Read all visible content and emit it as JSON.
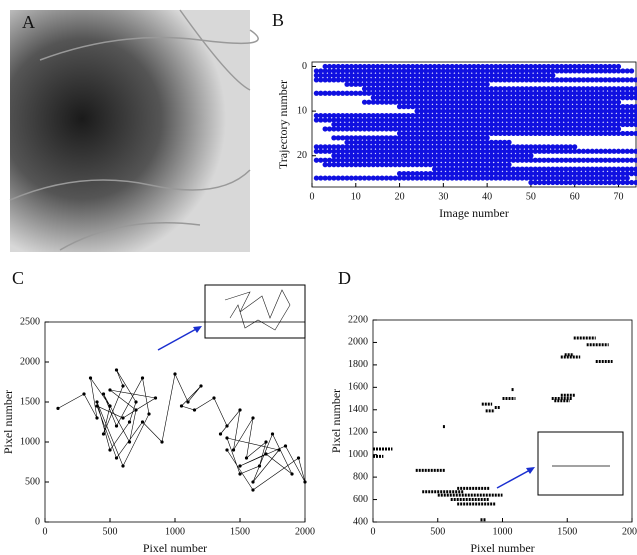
{
  "panel_labels": [
    "A",
    "B",
    "C",
    "D"
  ],
  "chart_data": [
    {
      "type": "dotrows",
      "xlabel": "Image number",
      "ylabel": "Trajectory number",
      "color": "#1010e0",
      "xlim": [
        0,
        74
      ],
      "ylim": [
        -1,
        27
      ],
      "y_inverted": true,
      "xticks": [
        0,
        10,
        20,
        30,
        40,
        50,
        60,
        70
      ],
      "yticks": [
        0,
        10,
        20
      ],
      "rows": [
        0,
        1,
        2,
        3,
        4,
        5,
        6,
        7,
        8,
        9,
        10,
        11,
        12,
        13,
        14,
        15,
        16,
        17,
        18,
        19,
        20,
        21,
        22,
        23,
        24,
        25,
        26
      ],
      "start": [
        3,
        1,
        1,
        1,
        8,
        12,
        1,
        14,
        12,
        20,
        24,
        1,
        1,
        5,
        3,
        20,
        5,
        8,
        1,
        1,
        5,
        1,
        3,
        28,
        20,
        1,
        50
      ],
      "end": [
        70,
        73,
        55,
        74,
        40,
        74,
        74,
        74,
        70,
        74,
        74,
        74,
        74,
        74,
        70,
        74,
        40,
        45,
        60,
        74,
        50,
        74,
        45,
        74,
        74,
        72,
        74
      ]
    },
    {
      "type": "line",
      "xlabel": "Pixel number",
      "ylabel": "Pixel number",
      "color": "#000000",
      "xlim": [
        0,
        2000
      ],
      "ylim": [
        0,
        2500
      ],
      "xticks": [
        0,
        500,
        1000,
        1500,
        2000
      ],
      "yticks": [
        0,
        500,
        1000,
        1500,
        2000,
        2500
      ],
      "x": [
        100,
        300,
        400,
        350,
        500,
        450,
        600,
        550,
        700,
        650,
        500,
        400,
        600,
        800,
        750,
        550,
        450,
        650,
        700,
        500,
        850,
        600,
        400,
        550,
        750,
        900,
        1000,
        1100,
        1200,
        1050,
        1150,
        1300,
        1400,
        1350,
        1500,
        1450,
        1600,
        1550,
        1700,
        1650,
        1500,
        1400,
        1800,
        1600,
        1750,
        1900,
        1700,
        1500,
        1850,
        2000,
        1950,
        1600,
        1400
      ],
      "y": [
        1420,
        1600,
        1300,
        1800,
        1450,
        1100,
        1700,
        1900,
        1500,
        1250,
        900,
        1500,
        700,
        1350,
        1800,
        1200,
        1600,
        1000,
        1400,
        1650,
        1550,
        1300,
        1450,
        800,
        1250,
        1000,
        1850,
        1500,
        1700,
        1450,
        1400,
        1550,
        1200,
        1100,
        1400,
        900,
        1300,
        800,
        1000,
        700,
        600,
        1050,
        900,
        500,
        1100,
        600,
        850,
        700,
        950,
        500,
        800,
        400,
        900
      ]
    },
    {
      "type": "segments",
      "xlabel": "Pixel number",
      "ylabel": "Pixel number",
      "color": "#000000",
      "xlim": [
        0,
        2000
      ],
      "ylim": [
        400,
        2200
      ],
      "xticks": [
        0,
        500,
        1000,
        1500,
        2000
      ],
      "yticks": [
        400,
        600,
        800,
        1000,
        1200,
        1400,
        1600,
        1800,
        2000,
        2200
      ],
      "y": [
        1050,
        985,
        860,
        1250,
        670,
        640,
        700,
        600,
        560,
        420,
        1450,
        1390,
        1420,
        1500,
        1580,
        1500,
        1530,
        1480,
        1870,
        1890,
        2040,
        1980,
        1830
      ],
      "x_start": [
        0,
        0,
        330,
        540,
        380,
        500,
        650,
        600,
        650,
        830,
        840,
        870,
        940,
        1000,
        1070,
        1380,
        1450,
        1400,
        1450,
        1480,
        1550,
        1650,
        1720
      ],
      "x_end": [
        150,
        80,
        560,
        560,
        700,
        1000,
        900,
        900,
        950,
        870,
        920,
        940,
        980,
        1100,
        1090,
        1540,
        1560,
        1520,
        1600,
        1550,
        1720,
        1820,
        1850
      ]
    }
  ]
}
